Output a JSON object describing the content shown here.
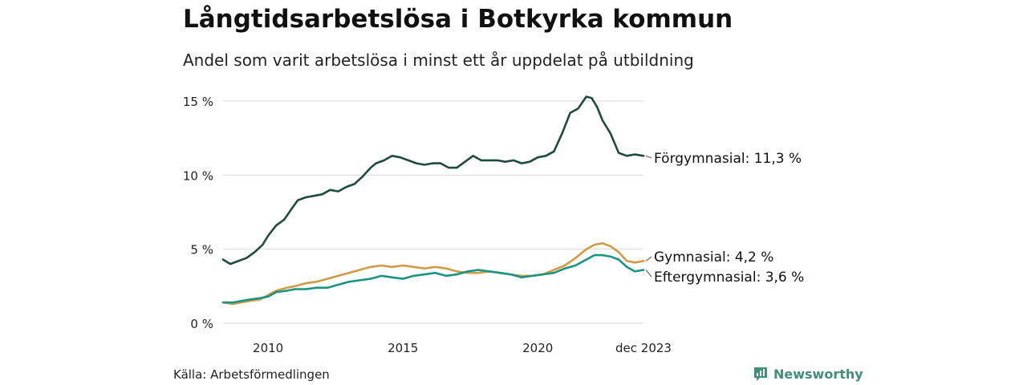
{
  "header": {
    "title": "Långtidsarbetslösa i Botkyrka kommun",
    "subtitle": "Andel som varit arbetslösa i minst ett år uppdelat på utbildning"
  },
  "footer": {
    "source": "Källa: Arbetsförmedlingen",
    "brand": "Newsworthy"
  },
  "colors": {
    "forgymnasial": "#1f4a40",
    "gymnasial": "#d19b45",
    "eftergymnasial": "#1a9482",
    "grid": "#d9d9d9",
    "brand": "#3f8f7a"
  },
  "chart_data": {
    "type": "line",
    "title": "Långtidsarbetslösa i Botkyrka kommun",
    "xlabel": "",
    "ylabel": "",
    "ylim": [
      0,
      15.5
    ],
    "xlim": [
      2008.33,
      2023.92
    ],
    "yticks": [
      0,
      5,
      10,
      15
    ],
    "ytick_labels": [
      "0 %",
      "5 %",
      "10 %",
      "15 %"
    ],
    "xticks": [
      2010,
      2015,
      2020,
      2023.92
    ],
    "xtick_labels": [
      "2010",
      "2015",
      "2020",
      "dec 2023"
    ],
    "grid": true,
    "series": [
      {
        "key": "forgymnasial",
        "name": "Förgymnasial",
        "end_label": "Förgymnasial: 11,3 %",
        "x": [
          2008.33,
          2008.6,
          2008.9,
          2009.2,
          2009.5,
          2009.8,
          2010.0,
          2010.3,
          2010.6,
          2010.9,
          2011.1,
          2011.4,
          2011.7,
          2012.0,
          2012.3,
          2012.6,
          2012.9,
          2013.2,
          2013.5,
          2013.8,
          2014.0,
          2014.3,
          2014.6,
          2014.9,
          2015.2,
          2015.5,
          2015.8,
          2016.1,
          2016.4,
          2016.7,
          2017.0,
          2017.3,
          2017.6,
          2017.9,
          2018.2,
          2018.5,
          2018.8,
          2019.1,
          2019.4,
          2019.7,
          2020.0,
          2020.3,
          2020.6,
          2020.9,
          2021.2,
          2021.5,
          2021.8,
          2022.0,
          2022.2,
          2022.4,
          2022.7,
          2023.0,
          2023.3,
          2023.6,
          2023.92
        ],
        "values": [
          4.3,
          4.0,
          4.2,
          4.4,
          4.8,
          5.3,
          5.9,
          6.6,
          7.0,
          7.8,
          8.3,
          8.5,
          8.6,
          8.7,
          9.0,
          8.9,
          9.2,
          9.4,
          9.9,
          10.5,
          10.8,
          11.0,
          11.3,
          11.2,
          11.0,
          10.8,
          10.7,
          10.8,
          10.8,
          10.5,
          10.5,
          10.9,
          11.3,
          11.0,
          11.0,
          11.0,
          10.9,
          11.0,
          10.8,
          10.9,
          11.2,
          11.3,
          11.6,
          12.8,
          14.2,
          14.5,
          15.3,
          15.2,
          14.6,
          13.7,
          12.8,
          11.5,
          11.3,
          11.4,
          11.3
        ]
      },
      {
        "key": "gymnasial",
        "name": "Gymnasial",
        "end_label": "Gymnasial:  4,2 %",
        "x": [
          2008.33,
          2008.7,
          2009.0,
          2009.3,
          2009.7,
          2010.0,
          2010.3,
          2010.7,
          2011.0,
          2011.4,
          2011.8,
          2012.2,
          2012.6,
          2013.0,
          2013.4,
          2013.8,
          2014.2,
          2014.6,
          2015.0,
          2015.4,
          2015.8,
          2016.2,
          2016.6,
          2017.0,
          2017.4,
          2017.8,
          2018.2,
          2018.6,
          2019.0,
          2019.4,
          2019.8,
          2020.2,
          2020.6,
          2021.0,
          2021.4,
          2021.8,
          2022.1,
          2022.4,
          2022.7,
          2023.0,
          2023.3,
          2023.6,
          2023.92
        ],
        "values": [
          1.4,
          1.3,
          1.4,
          1.5,
          1.6,
          1.9,
          2.2,
          2.4,
          2.5,
          2.7,
          2.8,
          3.0,
          3.2,
          3.4,
          3.6,
          3.8,
          3.9,
          3.8,
          3.9,
          3.8,
          3.7,
          3.8,
          3.7,
          3.5,
          3.4,
          3.4,
          3.5,
          3.4,
          3.3,
          3.2,
          3.2,
          3.3,
          3.6,
          3.9,
          4.4,
          5.0,
          5.3,
          5.4,
          5.2,
          4.8,
          4.2,
          4.1,
          4.2
        ]
      },
      {
        "key": "eftergymnasial",
        "name": "Eftergymnasial",
        "end_label": "Eftergymnasial:  3,6 %",
        "x": [
          2008.33,
          2008.7,
          2009.0,
          2009.3,
          2009.7,
          2010.0,
          2010.3,
          2010.7,
          2011.0,
          2011.4,
          2011.8,
          2012.2,
          2012.6,
          2013.0,
          2013.4,
          2013.8,
          2014.2,
          2014.6,
          2015.0,
          2015.4,
          2015.8,
          2016.2,
          2016.6,
          2017.0,
          2017.4,
          2017.8,
          2018.2,
          2018.6,
          2019.0,
          2019.4,
          2019.8,
          2020.2,
          2020.6,
          2021.0,
          2021.4,
          2021.8,
          2022.1,
          2022.4,
          2022.7,
          2023.0,
          2023.3,
          2023.6,
          2023.92
        ],
        "values": [
          1.4,
          1.4,
          1.5,
          1.6,
          1.7,
          1.8,
          2.1,
          2.2,
          2.3,
          2.3,
          2.4,
          2.4,
          2.6,
          2.8,
          2.9,
          3.0,
          3.2,
          3.1,
          3.0,
          3.2,
          3.3,
          3.4,
          3.2,
          3.3,
          3.5,
          3.6,
          3.5,
          3.4,
          3.3,
          3.1,
          3.2,
          3.3,
          3.4,
          3.7,
          3.9,
          4.3,
          4.6,
          4.6,
          4.5,
          4.3,
          3.8,
          3.5,
          3.6
        ]
      }
    ]
  }
}
